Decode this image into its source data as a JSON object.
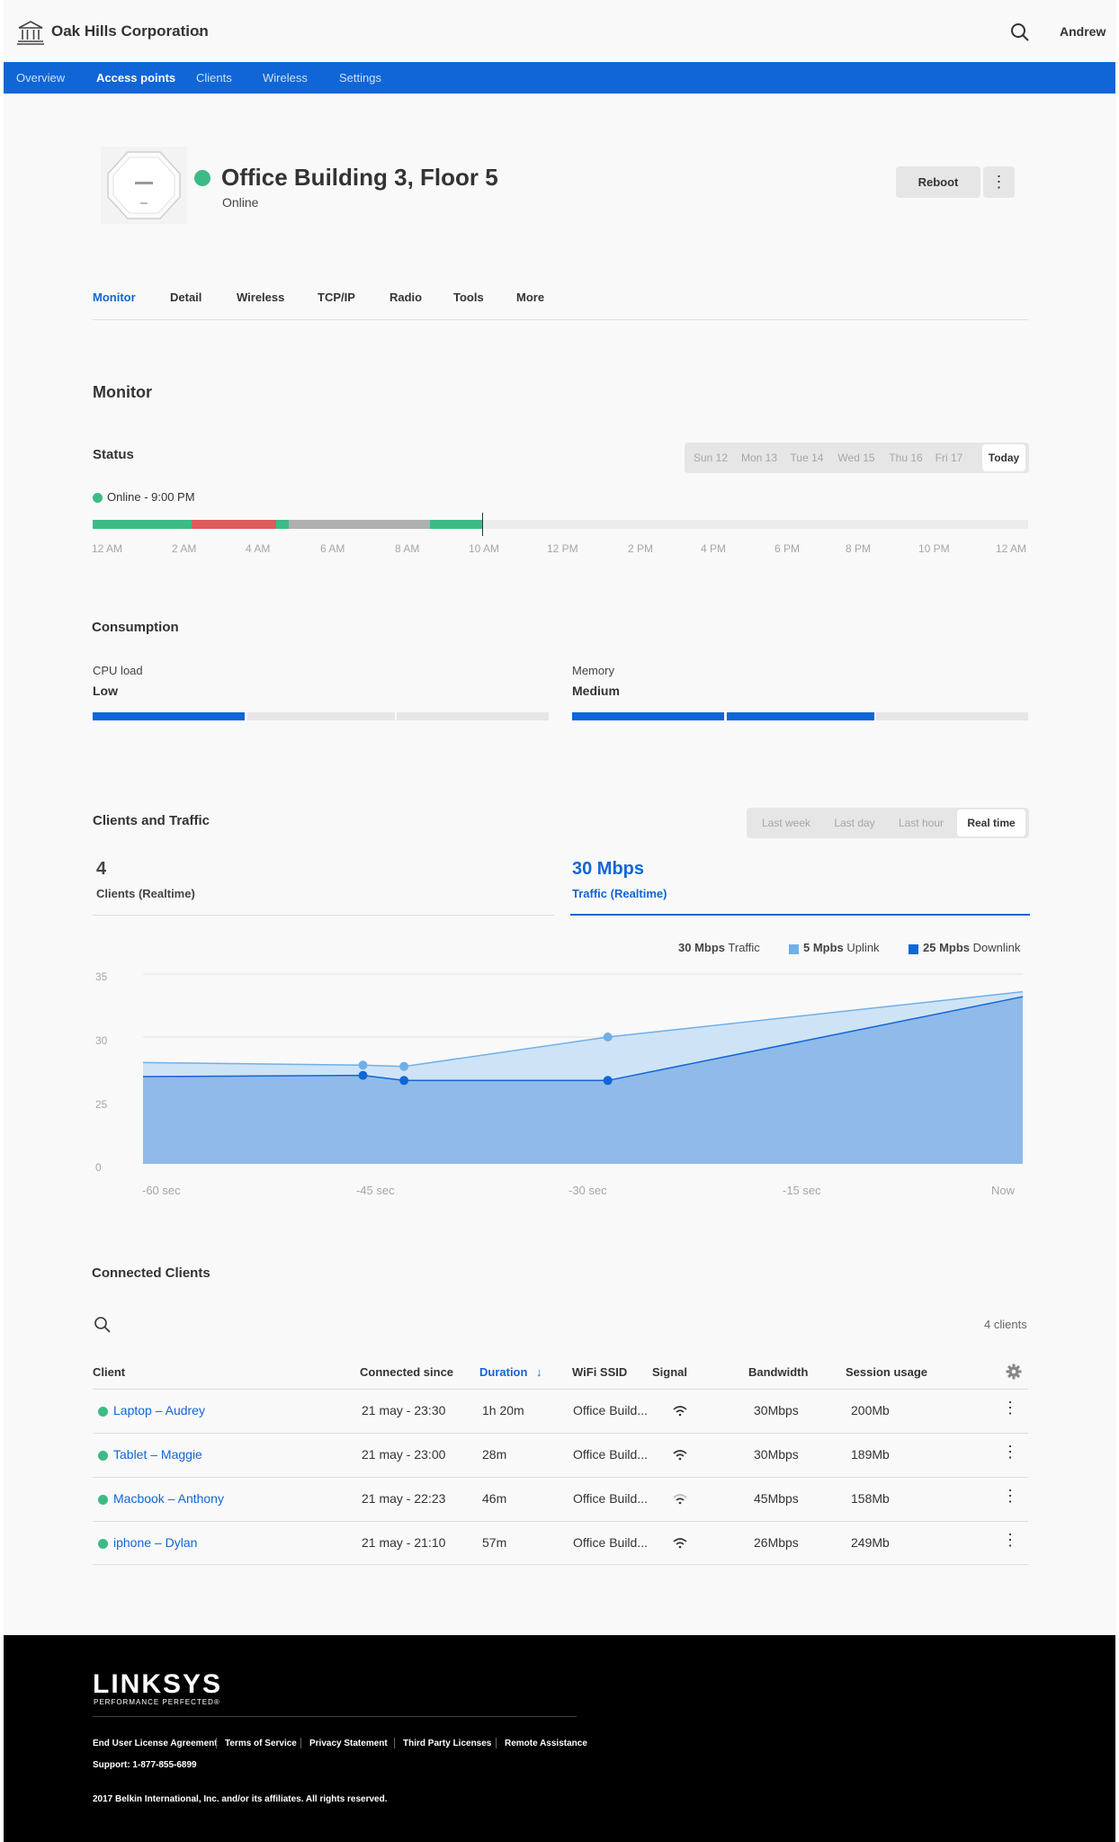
{
  "header": {
    "org_name": "Oak Hills Corporation",
    "user_name": "Andrew",
    "org_icon": "building-icon",
    "search_icon": "search-icon"
  },
  "nav": {
    "items": [
      "Overview",
      "Access points",
      "Clients",
      "Wireless",
      "Settings"
    ],
    "active": "Access points"
  },
  "device": {
    "title": "Office Building 3, Floor 5",
    "status": "Online",
    "reboot_label": "Reboot",
    "more_icon": "⋮"
  },
  "subtabs": [
    "Monitor",
    "Detail",
    "Wireless",
    "TCP/IP",
    "Radio",
    "Tools",
    "More"
  ],
  "monitor": {
    "heading": "Monitor",
    "status_heading": "Status",
    "days": [
      "Sun 12",
      "Mon 13",
      "Tue 14",
      "Wed 15",
      "Thu 16",
      "Fri 17",
      "Today"
    ],
    "status_text": "Online - 9:00 PM",
    "timeline_labels": [
      "12 AM",
      "2 AM",
      "4 AM",
      "6 AM",
      "8 AM",
      "10 AM",
      "12 PM",
      "2 PM",
      "4 PM",
      "6 PM",
      "8 PM",
      "10 PM",
      "12 AM"
    ]
  },
  "consumption": {
    "heading": "Consumption",
    "cpu_label": "CPU load",
    "cpu_value": "Low",
    "memory_label": "Memory",
    "memory_value": "Medium"
  },
  "clients_traffic": {
    "heading": "Clients and Traffic",
    "ranges": [
      "Last week",
      "Last day",
      "Last hour",
      "Real time"
    ],
    "clients_value": "4",
    "clients_label": "Clients (Realtime)",
    "traffic_value": "30 Mbps",
    "traffic_label": "Traffic (Realtime)",
    "legend": {
      "traffic_bold": "30 Mbps",
      "traffic_text": "Traffic",
      "uplink_bold": "5 Mpbs",
      "uplink_text": "Uplink",
      "downlink_bold": "25 Mpbs",
      "downlink_text": "Downlink"
    },
    "colors": {
      "uplink": "#6fb0e8",
      "downlink": "#1066d6"
    }
  },
  "chart_data": {
    "type": "area",
    "x_labels": [
      "-60 sec",
      "-45 sec",
      "-30 sec",
      "-15 sec",
      "Now"
    ],
    "y_ticks": [
      "35",
      "30",
      "25",
      "0"
    ],
    "series": [
      {
        "name": "Uplink",
        "points": [
          [
            -60,
            28
          ],
          [
            -45,
            27.8
          ],
          [
            -42.2,
            27.7
          ],
          [
            -28.3,
            30
          ],
          [
            0,
            33.6
          ]
        ]
      },
      {
        "name": "Downlink",
        "points": [
          [
            -60,
            26.9
          ],
          [
            -45,
            27
          ],
          [
            -42.2,
            26.6
          ],
          [
            -28.3,
            26.6
          ],
          [
            0,
            33.2
          ]
        ]
      }
    ]
  },
  "connected_clients": {
    "heading": "Connected Clients",
    "count_text": "4 clients",
    "columns": [
      "Client",
      "Connected since",
      "Duration",
      "WiFi SSID",
      "Signal",
      "Bandwidth",
      "Session usage"
    ],
    "sort_icon": "↓",
    "rows": [
      {
        "client": "Laptop – Audrey",
        "since": "21 may - 23:30",
        "duration": "1h 20m",
        "ssid": "Office Build...",
        "bandwidth": "30Mbps",
        "usage": "200Mb"
      },
      {
        "client": "Tablet – Maggie",
        "since": "21 may - 23:00",
        "duration": "28m",
        "ssid": "Office Build...",
        "bandwidth": "30Mbps",
        "usage": "189Mb"
      },
      {
        "client": "Macbook – Anthony",
        "since": "21 may - 22:23",
        "duration": "46m",
        "ssid": "Office Build...",
        "bandwidth": "45Mbps",
        "usage": "158Mb"
      },
      {
        "client": "iphone – Dylan",
        "since": "21 may - 21:10",
        "duration": "57m",
        "ssid": "Office Build...",
        "bandwidth": "26Mbps",
        "usage": "249Mb"
      }
    ]
  },
  "footer": {
    "logo": "LINKSYS",
    "tagline": "PERFORMANCE PERFECTED®",
    "links": [
      "End User License Agreement",
      "Terms of Service",
      "Privacy Statement",
      "Third Party Licenses",
      "Remote Assistance"
    ],
    "support": "Support: 1-877-855-6899",
    "copyright": "2017 Belkin International, Inc. and/or its affiliates. All rights reserved."
  }
}
